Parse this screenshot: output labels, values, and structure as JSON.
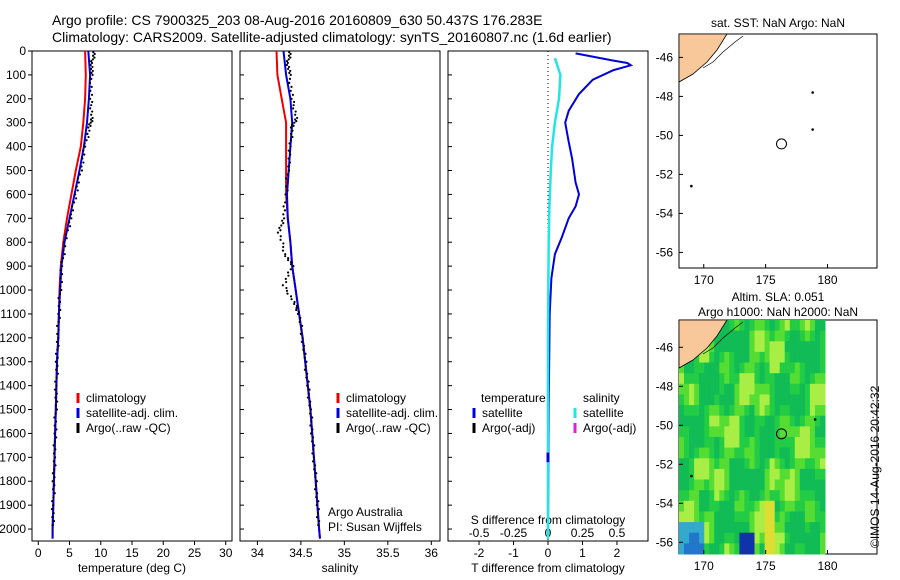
{
  "title": {
    "line1": "Argo profile: CS 7900325_203 08-Aug-2016 20160809_630 50.437S 176.283E",
    "line2": "Climatology: CARS2009. Satellite-adjusted climatology: synTS_20160807.nc (1.6d earlier)"
  },
  "stamp": "©IMOS 14-Aug-2016 20:42:32",
  "colors": {
    "climatology": "#ee0000",
    "satellite": "#0000dd",
    "argo": "#000000",
    "cyan": "#22e6e6",
    "magenta": "#dd22dd",
    "land": "#f8c79a"
  },
  "chart_data": [
    {
      "type": "line",
      "xlabel": "temperature (deg C)",
      "ylabel": "",
      "xlim": [
        -1,
        31
      ],
      "ylim": [
        2050,
        0
      ],
      "xticks": [
        "0",
        "5",
        "10",
        "15",
        "20",
        "25",
        "30"
      ],
      "yticks": [
        "0",
        "100",
        "200",
        "300",
        "400",
        "500",
        "600",
        "700",
        "800",
        "900",
        "1000",
        "1100",
        "1200",
        "1300",
        "1400",
        "1500",
        "1600",
        "1700",
        "1800",
        "1900",
        "2000"
      ],
      "legend": [
        "climatology",
        "satellite-adj. clim.",
        "Argo(..raw -QC)"
      ],
      "series": [
        {
          "name": "climatology",
          "points": [
            [
              7.5,
              0
            ],
            [
              7.6,
              100
            ],
            [
              7.5,
              200
            ],
            [
              7.2,
              300
            ],
            [
              6.8,
              400
            ],
            [
              6.0,
              500
            ],
            [
              5.3,
              600
            ],
            [
              4.6,
              700
            ],
            [
              4.0,
              800
            ],
            [
              3.6,
              900
            ],
            [
              3.4,
              1000
            ],
            [
              3.3,
              1100
            ],
            [
              3.2,
              1200
            ],
            [
              3.0,
              1300
            ],
            [
              2.9,
              1400
            ],
            [
              2.8,
              1500
            ],
            [
              2.7,
              1600
            ],
            [
              2.6,
              1700
            ],
            [
              2.5,
              1800
            ],
            [
              2.4,
              1900
            ],
            [
              2.3,
              2000
            ],
            [
              2.3,
              2040
            ]
          ]
        },
        {
          "name": "satellite-adj. clim.",
          "points": [
            [
              8.0,
              0
            ],
            [
              8.3,
              100
            ],
            [
              8.1,
              200
            ],
            [
              7.8,
              300
            ],
            [
              7.3,
              400
            ],
            [
              6.6,
              500
            ],
            [
              5.8,
              600
            ],
            [
              5.0,
              700
            ],
            [
              4.2,
              800
            ],
            [
              3.7,
              900
            ],
            [
              3.5,
              1000
            ],
            [
              3.3,
              1100
            ],
            [
              3.2,
              1200
            ],
            [
              3.0,
              1300
            ],
            [
              2.9,
              1400
            ],
            [
              2.8,
              1500
            ],
            [
              2.7,
              1600
            ],
            [
              2.6,
              1700
            ],
            [
              2.5,
              1800
            ],
            [
              2.4,
              1900
            ],
            [
              2.3,
              2000
            ],
            [
              2.3,
              2040
            ]
          ]
        },
        {
          "name": "Argo(..raw -QC)",
          "points": [
            [
              9.0,
              5
            ],
            [
              8.6,
              50
            ],
            [
              8.5,
              100
            ],
            [
              8.4,
              200
            ],
            [
              8.6,
              280
            ],
            [
              8.2,
              320
            ],
            [
              7.5,
              400
            ],
            [
              6.8,
              500
            ],
            [
              6.0,
              600
            ],
            [
              5.2,
              700
            ],
            [
              4.3,
              800
            ],
            [
              3.8,
              900
            ],
            [
              3.5,
              1000
            ],
            [
              3.3,
              1100
            ],
            [
              3.1,
              1200
            ],
            [
              3.0,
              1300
            ],
            [
              2.9,
              1400
            ],
            [
              2.8,
              1500
            ],
            [
              2.7,
              1600
            ],
            [
              2.6,
              1700
            ],
            [
              2.5,
              1800
            ],
            [
              2.4,
              1900
            ],
            [
              2.3,
              2000
            ]
          ]
        }
      ]
    },
    {
      "type": "line",
      "xlabel": "salinity",
      "ylabel": "",
      "xlim": [
        33.8,
        36.1
      ],
      "ylim": [
        2050,
        0
      ],
      "xticks": [
        "34",
        "34.5",
        "35",
        "35.5",
        "36"
      ],
      "legend": [
        "climatology",
        "satellite-adj. clim.",
        "Argo(..raw -QC)"
      ],
      "annotation": [
        "Argo Australia",
        "PI: Susan Wijffels"
      ],
      "series": [
        {
          "name": "climatology",
          "points": [
            [
              34.22,
              0
            ],
            [
              34.23,
              100
            ],
            [
              34.28,
              200
            ],
            [
              34.33,
              300
            ],
            [
              34.33,
              400
            ],
            [
              34.33,
              500
            ],
            [
              34.33,
              600
            ],
            [
              34.35,
              700
            ],
            [
              34.38,
              800
            ],
            [
              34.4,
              900
            ],
            [
              34.44,
              1000
            ],
            [
              34.48,
              1100
            ],
            [
              34.52,
              1200
            ],
            [
              34.55,
              1300
            ],
            [
              34.58,
              1400
            ],
            [
              34.61,
              1500
            ],
            [
              34.63,
              1600
            ],
            [
              34.65,
              1700
            ],
            [
              34.67,
              1800
            ],
            [
              34.69,
              1900
            ],
            [
              34.71,
              2000
            ],
            [
              34.72,
              2040
            ]
          ]
        },
        {
          "name": "satellite-adj. clim.",
          "points": [
            [
              34.3,
              0
            ],
            [
              34.33,
              100
            ],
            [
              34.38,
              200
            ],
            [
              34.4,
              300
            ],
            [
              34.38,
              400
            ],
            [
              34.36,
              500
            ],
            [
              34.34,
              600
            ],
            [
              34.35,
              700
            ],
            [
              34.38,
              800
            ],
            [
              34.4,
              900
            ],
            [
              34.44,
              1000
            ],
            [
              34.48,
              1100
            ],
            [
              34.52,
              1200
            ],
            [
              34.55,
              1300
            ],
            [
              34.58,
              1400
            ],
            [
              34.61,
              1500
            ],
            [
              34.63,
              1600
            ],
            [
              34.65,
              1700
            ],
            [
              34.67,
              1800
            ],
            [
              34.69,
              1900
            ],
            [
              34.71,
              2000
            ],
            [
              34.72,
              2040
            ]
          ]
        },
        {
          "name": "Argo(..raw -QC)",
          "points": [
            [
              34.38,
              5
            ],
            [
              34.35,
              50
            ],
            [
              34.37,
              100
            ],
            [
              34.4,
              200
            ],
            [
              34.45,
              280
            ],
            [
              34.4,
              320
            ],
            [
              34.38,
              400
            ],
            [
              34.35,
              500
            ],
            [
              34.33,
              600
            ],
            [
              34.3,
              700
            ],
            [
              34.25,
              760
            ],
            [
              34.32,
              850
            ],
            [
              34.4,
              900
            ],
            [
              34.3,
              980
            ],
            [
              34.42,
              1050
            ],
            [
              34.48,
              1100
            ],
            [
              34.52,
              1200
            ],
            [
              34.55,
              1300
            ],
            [
              34.58,
              1400
            ],
            [
              34.61,
              1500
            ],
            [
              34.63,
              1600
            ],
            [
              34.65,
              1700
            ],
            [
              34.67,
              1800
            ],
            [
              34.69,
              1900
            ],
            [
              34.71,
              2000
            ]
          ]
        }
      ]
    },
    {
      "type": "line",
      "xlabel": "T difference from climatology",
      "xlabel_top": "S difference from climatology",
      "ylabel": "",
      "xlim": [
        -2.9,
        2.9
      ],
      "xlim_top": [
        -0.725,
        0.725
      ],
      "ylim": [
        2050,
        0
      ],
      "xticks": [
        "-2",
        "-1",
        "0",
        "1",
        "2"
      ],
      "xticks_top": [
        "-0.5",
        "-0.25",
        "0",
        "0.25",
        "0.5"
      ],
      "legend": {
        "temperature": [
          "satellite",
          "Argo(-adj)"
        ],
        "salinity": [
          "satellite",
          "Argo(-adj)"
        ],
        "headers": [
          "temperature",
          "salinity"
        ]
      },
      "series": [
        {
          "name": "satellite",
          "points": [
            [
              0.8,
              10
            ],
            [
              1.9,
              40
            ],
            [
              2.3,
              50
            ],
            [
              2.4,
              60
            ],
            [
              1.9,
              80
            ],
            [
              1.3,
              120
            ],
            [
              0.9,
              180
            ],
            [
              0.6,
              250
            ],
            [
              0.5,
              300
            ],
            [
              0.6,
              380
            ],
            [
              0.7,
              450
            ],
            [
              0.8,
              550
            ],
            [
              0.9,
              600
            ],
            [
              0.8,
              650
            ],
            [
              0.6,
              700
            ],
            [
              0.4,
              780
            ],
            [
              0.2,
              850
            ],
            [
              0.1,
              950
            ],
            [
              0.05,
              1100
            ],
            [
              0.02,
              1500
            ],
            [
              0.0,
              2040
            ]
          ]
        },
        {
          "name": "satellite",
          "points": [
            [
              0.05,
              30
            ],
            [
              0.09,
              100
            ],
            [
              0.08,
              200
            ],
            [
              0.05,
              300
            ],
            [
              0.03,
              400
            ],
            [
              0.02,
              500
            ],
            [
              0.01,
              650
            ],
            [
              0.005,
              800
            ],
            [
              0.002,
              1000
            ],
            [
              0.0,
              1200
            ],
            [
              0.0,
              2040
            ]
          ]
        }
      ]
    }
  ],
  "maps": [
    {
      "title": "sat. SST: NaN Argo: NaN",
      "xticks": [
        "170",
        "175",
        "180"
      ],
      "yticks": [
        "-46",
        "-48",
        "-50",
        "-52",
        "-54",
        "-56"
      ],
      "xlim": [
        168,
        184
      ],
      "ylim": [
        -56.8,
        -44.8
      ],
      "profile": {
        "lon": 176.283,
        "lat": -50.437
      },
      "dots": [
        [
          178.8,
          -47.8
        ],
        [
          178.8,
          -49.7
        ],
        [
          169.0,
          -52.6
        ]
      ]
    },
    {
      "title": [
        "Altim. SLA: 0.051",
        "Argo h1000: NaN h2000: NaN"
      ],
      "xticks": [
        "170",
        "175",
        "180"
      ],
      "yticks": [
        "-46",
        "-48",
        "-50",
        "-52",
        "-54",
        "-56"
      ],
      "xlim": [
        168,
        184
      ],
      "ylim": [
        -56.6,
        -44.6
      ],
      "profile": {
        "lon": 176.283,
        "lat": -50.437
      },
      "dots": [
        [
          169.0,
          -52.6
        ],
        [
          179.0,
          -49.7
        ]
      ]
    }
  ]
}
